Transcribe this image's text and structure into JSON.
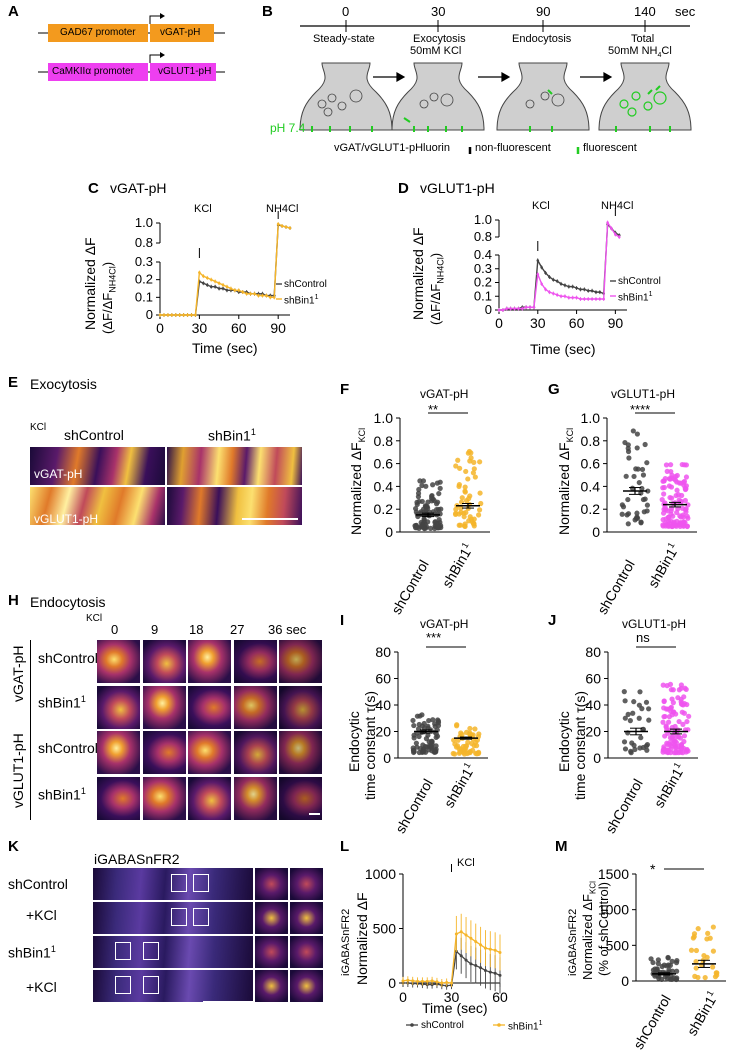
{
  "colors": {
    "orange": "#f39a1e",
    "magenta": "#ee3ff0",
    "shControl": "#444444",
    "shBin1": "#f5b52a",
    "shBin1_vglut": "#ee55ee",
    "green": "#22cc22",
    "dark": "#231040"
  },
  "panels": {
    "A": "A",
    "B": "B",
    "C": "C",
    "D": "D",
    "E": "E",
    "F": "F",
    "G": "G",
    "H": "H",
    "I": "I",
    "J": "J",
    "K": "K",
    "L": "L",
    "M": "M"
  },
  "a": {
    "prom1": "GAD67 promoter",
    "gene1": "vGAT-pH",
    "prom2": "CaMKIIα promoter",
    "gene2": "vGLUT1-pH"
  },
  "b": {
    "sec": "sec",
    "times": [
      "0",
      "30",
      "90",
      "140"
    ],
    "stage1": "Steady-state",
    "stage2a": "Exocytosis",
    "stage2b": "50mM KCl",
    "stage3": "Endocytosis",
    "stage4a": "Total",
    "stage4b": "50mM NH",
    "stage4c": "4",
    "stage4d": "Cl",
    "ph": "pH 7.4",
    "legend": "vGAT/vGLUT1-pHluorin",
    "nonfl": "non-fluorescent",
    "fl": "fluorescent"
  },
  "c": {
    "title": "vGAT-pH",
    "kcl": "KCl",
    "nh4": "NH4Cl",
    "ylab1": "Normalized ΔF",
    "ylab2": "(ΔF/ΔF",
    "ylab2s": "NH4Cl",
    "ylab2e": ")",
    "xlab": "Time (sec)",
    "leg1": "shControl",
    "leg2": "shBin1",
    "sup": "1",
    "xticks": [
      "0",
      "30",
      "60",
      "90"
    ],
    "yticks": [
      "0",
      "0.1",
      "0.2",
      "0.3"
    ],
    "ytop": [
      "0.8",
      "1.0"
    ]
  },
  "d": {
    "title": "vGLUT1-pH",
    "kcl": "KCl",
    "nh4": "NH4Cl",
    "ylab1": "Normalized ΔF",
    "ylab2": "(ΔF/ΔF",
    "ylab2s": "NH4Cl",
    "ylab2e": ")",
    "xlab": "Time (sec)",
    "leg1": "shControl",
    "leg2": "shBin1",
    "sup": "1",
    "xticks": [
      "0",
      "30",
      "60",
      "90"
    ],
    "yticks": [
      "0",
      "0.1",
      "0.2",
      "0.3",
      "0.4"
    ],
    "ytop": [
      "0.8",
      "1.0"
    ]
  },
  "e": {
    "title": "Exocytosis",
    "kcl": "KCl",
    "col1": "shControl",
    "col2": "shBin1",
    "sup": "1",
    "row1": "vGAT-pH",
    "row2": "vGLUT1-pH"
  },
  "f": {
    "title": "vGAT-pH",
    "sig": "**",
    "ylab": "Normalized ΔF",
    "ysub": "KCl",
    "yticks": [
      "0",
      "0.2",
      "0.4",
      "0.6",
      "0.8",
      "1.0"
    ],
    "x1": "shControl",
    "x2": "shBin1",
    "sup": "1"
  },
  "g": {
    "title": "vGLUT1-pH",
    "sig": "****",
    "ylab": "Normalized ΔF",
    "ysub": "KCl",
    "yticks": [
      "0",
      "0.2",
      "0.4",
      "0.6",
      "0.8",
      "1.0"
    ],
    "x1": "shControl",
    "x2": "shBin1",
    "sup": "1"
  },
  "h": {
    "title": "Endocytosis",
    "kcl": "KCl",
    "times": [
      "0",
      "9",
      "18",
      "27",
      "36 sec"
    ],
    "grp1": "vGAT-pH",
    "grp2": "vGLUT1-pH",
    "row1": "shControl",
    "row2": "shBin1",
    "sup": "1"
  },
  "i": {
    "title": "vGAT-pH",
    "sig": "***",
    "ylab1": "Endocytic",
    "ylab2": "time constant τ(s)",
    "yticks": [
      "0",
      "20",
      "40",
      "60",
      "80"
    ],
    "x1": "shControl",
    "x2": "shBin1",
    "sup": "1"
  },
  "j": {
    "title": "vGLUT1-pH",
    "sig": "ns",
    "ylab1": "Endocytic",
    "ylab2": "time constant τ(s)",
    "yticks": [
      "0",
      "20",
      "40",
      "60",
      "80"
    ],
    "x1": "shControl",
    "x2": "shBin1",
    "sup": "1"
  },
  "k": {
    "title": "iGABASnFR2",
    "row1": "shControl",
    "row2": "+KCl",
    "row3": "shBin1",
    "row4": "+KCl",
    "sup": "1"
  },
  "l": {
    "kcl": "KCl",
    "ylab0": "iGABASnFR2",
    "ylab1": "Normalized ΔF",
    "xlab": "Time (sec)",
    "yticks": [
      "0",
      "500",
      "1000"
    ],
    "xticks": [
      "0",
      "30",
      "60"
    ],
    "leg1": "shControl",
    "leg2": "shBin1",
    "sup": "1"
  },
  "m": {
    "sig": "*",
    "ylab0": "iGABASnFR2",
    "ylab1": "Normalized ΔF",
    "ysub": "KCl",
    "ylab2": "(% of shControl)",
    "yticks": [
      "0",
      "500",
      "1000",
      "1500"
    ],
    "x1": "shControl",
    "x2": "shBin1",
    "sup": "1"
  },
  "chart_data": [
    {
      "type": "line",
      "title": "vGAT-pH",
      "xlabel": "Time (sec)",
      "ylabel": "Normalized ΔF (ΔF/ΔF NH4Cl)",
      "x": [
        0,
        3,
        6,
        9,
        12,
        15,
        18,
        21,
        24,
        27,
        30,
        33,
        36,
        39,
        42,
        45,
        48,
        51,
        54,
        57,
        60,
        63,
        66,
        69,
        72,
        75,
        78,
        81,
        84,
        87,
        90,
        93,
        96,
        99
      ],
      "series": [
        {
          "name": "shControl",
          "values": [
            0,
            0,
            0,
            0,
            0,
            0,
            0,
            0,
            0,
            0,
            0.19,
            0.18,
            0.17,
            0.16,
            0.16,
            0.15,
            0.15,
            0.14,
            0.14,
            0.14,
            0.13,
            0.13,
            0.13,
            0.12,
            0.12,
            0.12,
            0.12,
            0.11,
            0.11,
            0.11,
            0.98,
            0.97,
            0.96,
            0.95
          ]
        },
        {
          "name": "shBin1",
          "values": [
            0,
            0,
            0,
            0,
            0,
            0,
            0,
            0,
            0,
            0,
            0.24,
            0.22,
            0.21,
            0.2,
            0.19,
            0.18,
            0.17,
            0.16,
            0.15,
            0.14,
            0.14,
            0.13,
            0.12,
            0.12,
            0.12,
            0.11,
            0.11,
            0.11,
            0.1,
            0.1,
            0.99,
            0.97,
            0.96,
            0.95
          ]
        }
      ],
      "ylim": [
        0,
        1.0
      ]
    },
    {
      "type": "line",
      "title": "vGLUT1-pH",
      "xlabel": "Time (sec)",
      "ylabel": "Normalized ΔF (ΔF/ΔF NH4Cl)",
      "x": [
        0,
        3,
        6,
        9,
        12,
        15,
        18,
        21,
        24,
        27,
        30,
        33,
        36,
        39,
        42,
        45,
        48,
        51,
        54,
        57,
        60,
        63,
        66,
        69,
        72,
        75,
        78,
        81,
        84,
        87,
        90,
        93
      ],
      "series": [
        {
          "name": "shControl",
          "values": [
            0,
            0,
            0.01,
            0.01,
            0.01,
            0.01,
            0.02,
            0.02,
            0.02,
            0.02,
            0.36,
            0.31,
            0.27,
            0.24,
            0.22,
            0.21,
            0.19,
            0.18,
            0.17,
            0.17,
            0.16,
            0.15,
            0.15,
            0.14,
            0.14,
            0.13,
            0.13,
            0.12,
            0.95,
            0.9,
            0.85,
            0.82
          ]
        },
        {
          "name": "shBin1",
          "values": [
            0,
            0,
            0.01,
            0.01,
            0.01,
            0.01,
            0.01,
            0.02,
            0.02,
            0.02,
            0.26,
            0.19,
            0.15,
            0.13,
            0.12,
            0.11,
            0.1,
            0.1,
            0.09,
            0.09,
            0.09,
            0.08,
            0.08,
            0.08,
            0.08,
            0.08,
            0.08,
            0.08,
            0.97,
            0.9,
            0.83,
            0.8
          ]
        }
      ],
      "ylim": [
        0,
        1.0
      ]
    },
    {
      "type": "scatter",
      "title": "vGAT-pH",
      "ylabel": "Normalized ΔF KCl",
      "categories": [
        "shControl",
        "shBin1"
      ],
      "means": [
        0.15,
        0.23
      ],
      "sem": [
        0.015,
        0.02
      ],
      "ylim": [
        0,
        1.0
      ],
      "significance": "**"
    },
    {
      "type": "scatter",
      "title": "vGLUT1-pH",
      "ylabel": "Normalized ΔF KCl",
      "categories": [
        "shControl",
        "shBin1"
      ],
      "means": [
        0.36,
        0.24
      ],
      "sem": [
        0.03,
        0.02
      ],
      "ylim": [
        0,
        1.0
      ],
      "significance": "****"
    },
    {
      "type": "scatter",
      "title": "vGAT-pH",
      "ylabel": "Endocytic time constant τ(s)",
      "categories": [
        "shControl",
        "shBin1"
      ],
      "means": [
        20,
        15
      ],
      "sem": [
        1.2,
        0.8
      ],
      "ylim": [
        0,
        80
      ],
      "significance": "***"
    },
    {
      "type": "scatter",
      "title": "vGLUT1-pH",
      "ylabel": "Endocytic time constant τ(s)",
      "categories": [
        "shControl",
        "shBin1"
      ],
      "means": [
        20,
        20
      ],
      "sem": [
        2.5,
        1.8
      ],
      "ylim": [
        0,
        80
      ],
      "significance": "ns"
    },
    {
      "type": "line",
      "title": "",
      "xlabel": "Time (sec)",
      "ylabel": "iGABASnFR2 Normalized ΔF",
      "x": [
        0,
        3,
        6,
        9,
        12,
        15,
        18,
        21,
        24,
        27,
        30,
        33,
        36,
        39,
        42,
        45,
        48,
        51,
        54,
        57,
        60
      ],
      "series": [
        {
          "name": "shControl",
          "values": [
            0,
            0,
            -5,
            -5,
            -10,
            -15,
            -15,
            -10,
            -20,
            -25,
            -20,
            290,
            250,
            210,
            175,
            160,
            140,
            115,
            100,
            90,
            70
          ]
        },
        {
          "name": "shBin1",
          "values": [
            20,
            25,
            20,
            15,
            15,
            15,
            20,
            10,
            0,
            5,
            0,
            450,
            470,
            440,
            410,
            380,
            350,
            320,
            310,
            300,
            280
          ]
        }
      ],
      "ylim": [
        0,
        1000
      ]
    },
    {
      "type": "scatter",
      "title": "",
      "ylabel": "iGABASnFR2 Normalized ΔF KCl (% of shControl)",
      "categories": [
        "shControl",
        "shBin1"
      ],
      "means": [
        100,
        240
      ],
      "sem": [
        15,
        50
      ],
      "ylim": [
        0,
        1500
      ],
      "significance": "*"
    }
  ]
}
